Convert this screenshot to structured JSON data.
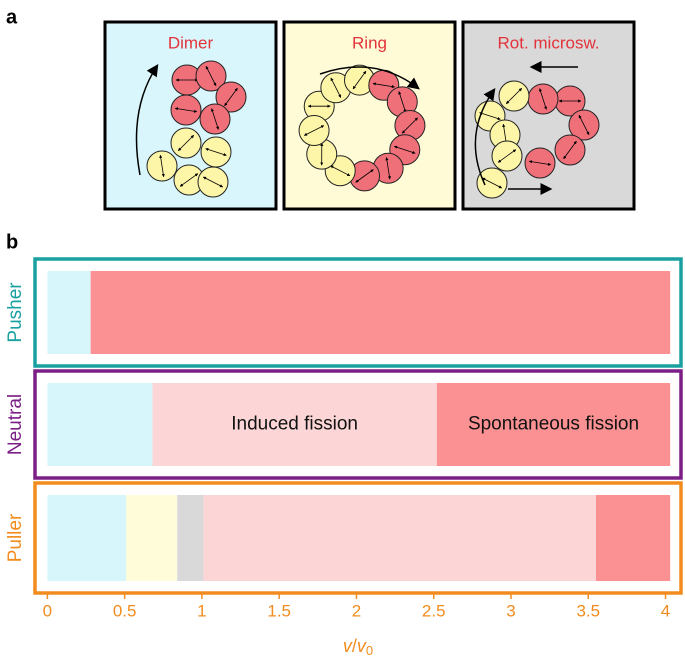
{
  "panel_a": {
    "label": "a",
    "boxes": [
      {
        "title": "Dimer",
        "fill": "#d8f6fb"
      },
      {
        "title": "Ring",
        "fill": "#fffbd6"
      },
      {
        "title": "Rot. microsw.",
        "fill": "#d9d9d9"
      }
    ]
  },
  "chart_data": {
    "type": "segmented-bar",
    "panel_label": "b",
    "xlabel": [
      "v",
      "/",
      "v",
      "0"
    ],
    "xlim": [
      -0.08,
      4.1
    ],
    "xticks": [
      0,
      0.5,
      1,
      1.5,
      2,
      2.5,
      3,
      3.5,
      4
    ],
    "axis_color": "#f28c1e",
    "rows": [
      {
        "name": "Pusher",
        "color": "#1aa0a0",
        "segments": [
          {
            "start": 0,
            "end": 0.28,
            "color": "#d6f6fb"
          },
          {
            "start": 0.28,
            "end": 4.03,
            "color": "#fc9193"
          }
        ]
      },
      {
        "name": "Neutral",
        "color": "#7b1f86",
        "segments": [
          {
            "start": 0,
            "end": 0.68,
            "color": "#d6f6fb"
          },
          {
            "start": 0.68,
            "end": 2.52,
            "color": "#fcd6d6",
            "label": "Induced fission"
          },
          {
            "start": 2.52,
            "end": 4.03,
            "color": "#fc9193",
            "label": "Spontaneous fission"
          }
        ]
      },
      {
        "name": "Puller",
        "color": "#f28c1e",
        "segments": [
          {
            "start": 0,
            "end": 0.51,
            "color": "#d6f6fb"
          },
          {
            "start": 0.51,
            "end": 0.84,
            "color": "#fefcd9"
          },
          {
            "start": 0.84,
            "end": 1.01,
            "color": "#d9d9d9"
          },
          {
            "start": 1.01,
            "end": 3.55,
            "color": "#fcd6d6"
          },
          {
            "start": 3.55,
            "end": 4.03,
            "color": "#fc9193"
          }
        ]
      }
    ]
  }
}
